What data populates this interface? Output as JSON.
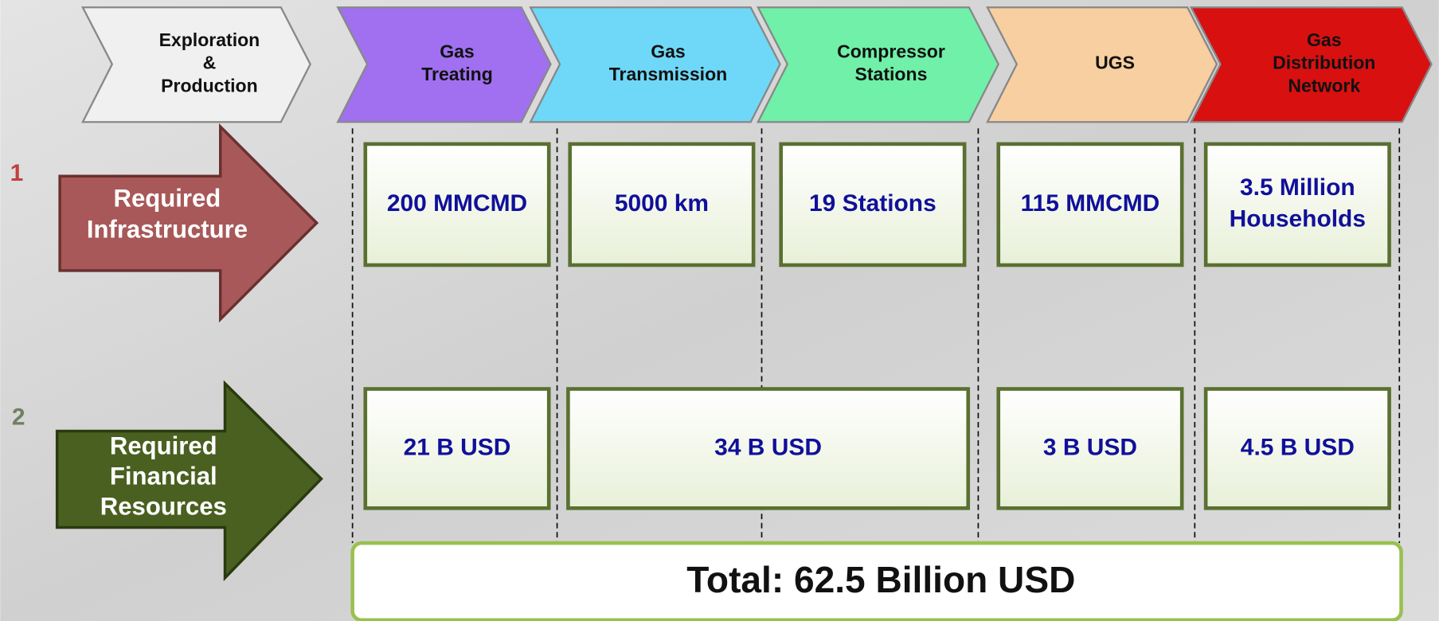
{
  "stages": [
    {
      "label": [
        "Exploration",
        "&",
        "Production"
      ]
    },
    {
      "label": [
        "Gas",
        "Treating"
      ]
    },
    {
      "label": [
        "Gas",
        "Transmission"
      ]
    },
    {
      "label": [
        "Compressor",
        "Stations"
      ]
    },
    {
      "label": [
        "UGS"
      ]
    },
    {
      "label": [
        "Gas",
        "Distribution",
        "Network"
      ]
    }
  ],
  "rows": [
    {
      "number": "1",
      "label": [
        "Required",
        "Infrastructure"
      ],
      "boxes": [
        [
          "200 MMCMD"
        ],
        [
          "5000 km"
        ],
        [
          "19 Stations"
        ],
        [
          "115 MMCMD"
        ],
        [
          "3.5 Million",
          "Households"
        ]
      ]
    },
    {
      "number": "2",
      "label": [
        "Required",
        "Financial",
        "Resources"
      ],
      "boxes": [
        [
          "21 B USD"
        ],
        [
          "34 B USD"
        ],
        [
          "3 B USD"
        ],
        [
          "4.5 B USD"
        ]
      ]
    }
  ],
  "total": "Total: 62.5 Billion USD"
}
